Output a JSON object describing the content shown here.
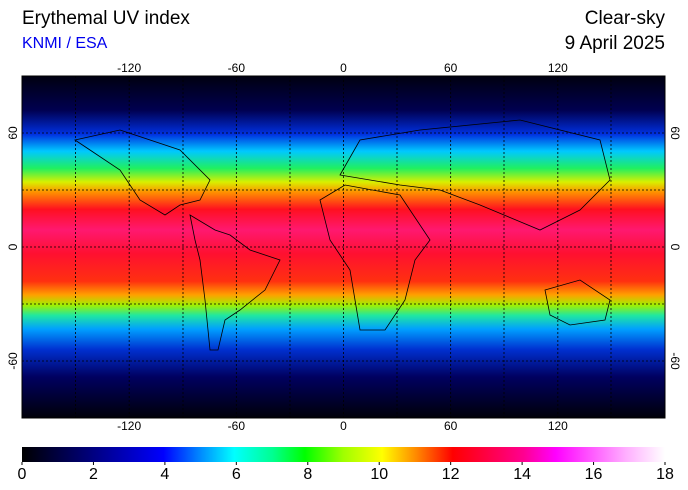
{
  "header": {
    "title": "Erythemal UV index",
    "source": "KNMI / ESA",
    "condition": "Clear-sky",
    "date": "9 April 2025"
  },
  "map": {
    "lonlim": [
      -180,
      180
    ],
    "latlim": [
      -90,
      90
    ],
    "lonticks": [
      -120,
      -60,
      0,
      60,
      120
    ],
    "latticks": [
      60,
      0,
      -60
    ]
  },
  "colorbar": {
    "lim": [
      0,
      18
    ],
    "ticks": [
      0,
      2,
      4,
      6,
      8,
      10,
      12,
      14,
      16,
      18
    ]
  }
}
